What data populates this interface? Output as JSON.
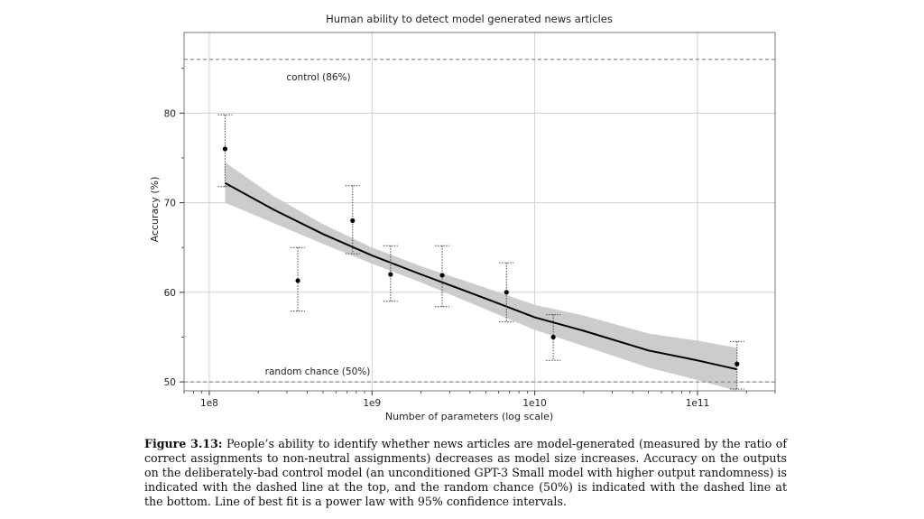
{
  "chart_data": {
    "type": "scatter",
    "title": "Human ability to detect model generated news articles",
    "xlabel": "Number of parameters (log scale)",
    "ylabel": "Accuracy (%)",
    "x_scale": "log",
    "xlim": [
      70000000,
      300000000000
    ],
    "ylim": [
      49,
      89
    ],
    "x_ticks": [
      {
        "value": 100000000,
        "label": "1e8"
      },
      {
        "value": 1000000000,
        "label": "1e9"
      },
      {
        "value": 10000000000,
        "label": "1e10"
      },
      {
        "value": 100000000000,
        "label": "1e11"
      }
    ],
    "y_ticks": [
      {
        "value": 50,
        "label": "50"
      },
      {
        "value": 60,
        "label": "60"
      },
      {
        "value": 70,
        "label": "70"
      },
      {
        "value": 80,
        "label": "80"
      }
    ],
    "grid": true,
    "points": [
      {
        "x": 125000000,
        "y": 76,
        "low": 71.8,
        "high": 79.8
      },
      {
        "x": 350000000,
        "y": 61.3,
        "low": 57.9,
        "high": 65
      },
      {
        "x": 760000000,
        "y": 68,
        "low": 64.3,
        "high": 71.9
      },
      {
        "x": 1300000000,
        "y": 62,
        "low": 59,
        "high": 65.2
      },
      {
        "x": 2700000000,
        "y": 61.9,
        "low": 58.4,
        "high": 65.2
      },
      {
        "x": 6700000000,
        "y": 60,
        "low": 56.7,
        "high": 63.3
      },
      {
        "x": 13000000000,
        "y": 55,
        "low": 52.4,
        "high": 57.5
      },
      {
        "x": 175000000000,
        "y": 52,
        "low": 49.2,
        "high": 54.5
      }
    ],
    "fit_line": {
      "x": [
        125000000,
        250000000,
        500000000,
        1000000000,
        2000000000,
        5000000000,
        10000000000,
        20000000000,
        50000000000,
        100000000000,
        175000000000
      ],
      "y": [
        72.2,
        69.2,
        66.5,
        64.1,
        62,
        59.3,
        57.2,
        55.7,
        53.5,
        52.4,
        51.4
      ],
      "ci_low": [
        70,
        67.7,
        65.4,
        63.2,
        61.1,
        58.1,
        55.8,
        54,
        51.6,
        50.2,
        49
      ],
      "ci_high": [
        74.5,
        70.7,
        67.6,
        65,
        62.9,
        60.5,
        58.6,
        57.4,
        55.4,
        54.6,
        53.8
      ]
    },
    "reference_lines": [
      {
        "y": 86,
        "style": "dashed",
        "label": "control (86%)"
      },
      {
        "y": 50,
        "style": "dashed",
        "label": "random chance (50%)"
      }
    ],
    "colors": {
      "points": "#000000",
      "fit_line": "#000000",
      "ci_band": "#cccccc",
      "grid": "#d0d0d0",
      "reference": "#777777"
    }
  },
  "caption": {
    "figure_label": "Figure 3.13:",
    "text": "People’s ability to identify whether news articles are model-generated (measured by the ratio of correct assignments to non-neutral assignments) decreases as model size increases. Accuracy on the outputs on the deliberately-bad control model (an unconditioned GPT-3 Small model with higher output randomness) is indicated with the dashed line at the top, and the random chance (50%) is indicated with the dashed line at the bottom. Line of best fit is a power law with 95% confidence intervals."
  }
}
